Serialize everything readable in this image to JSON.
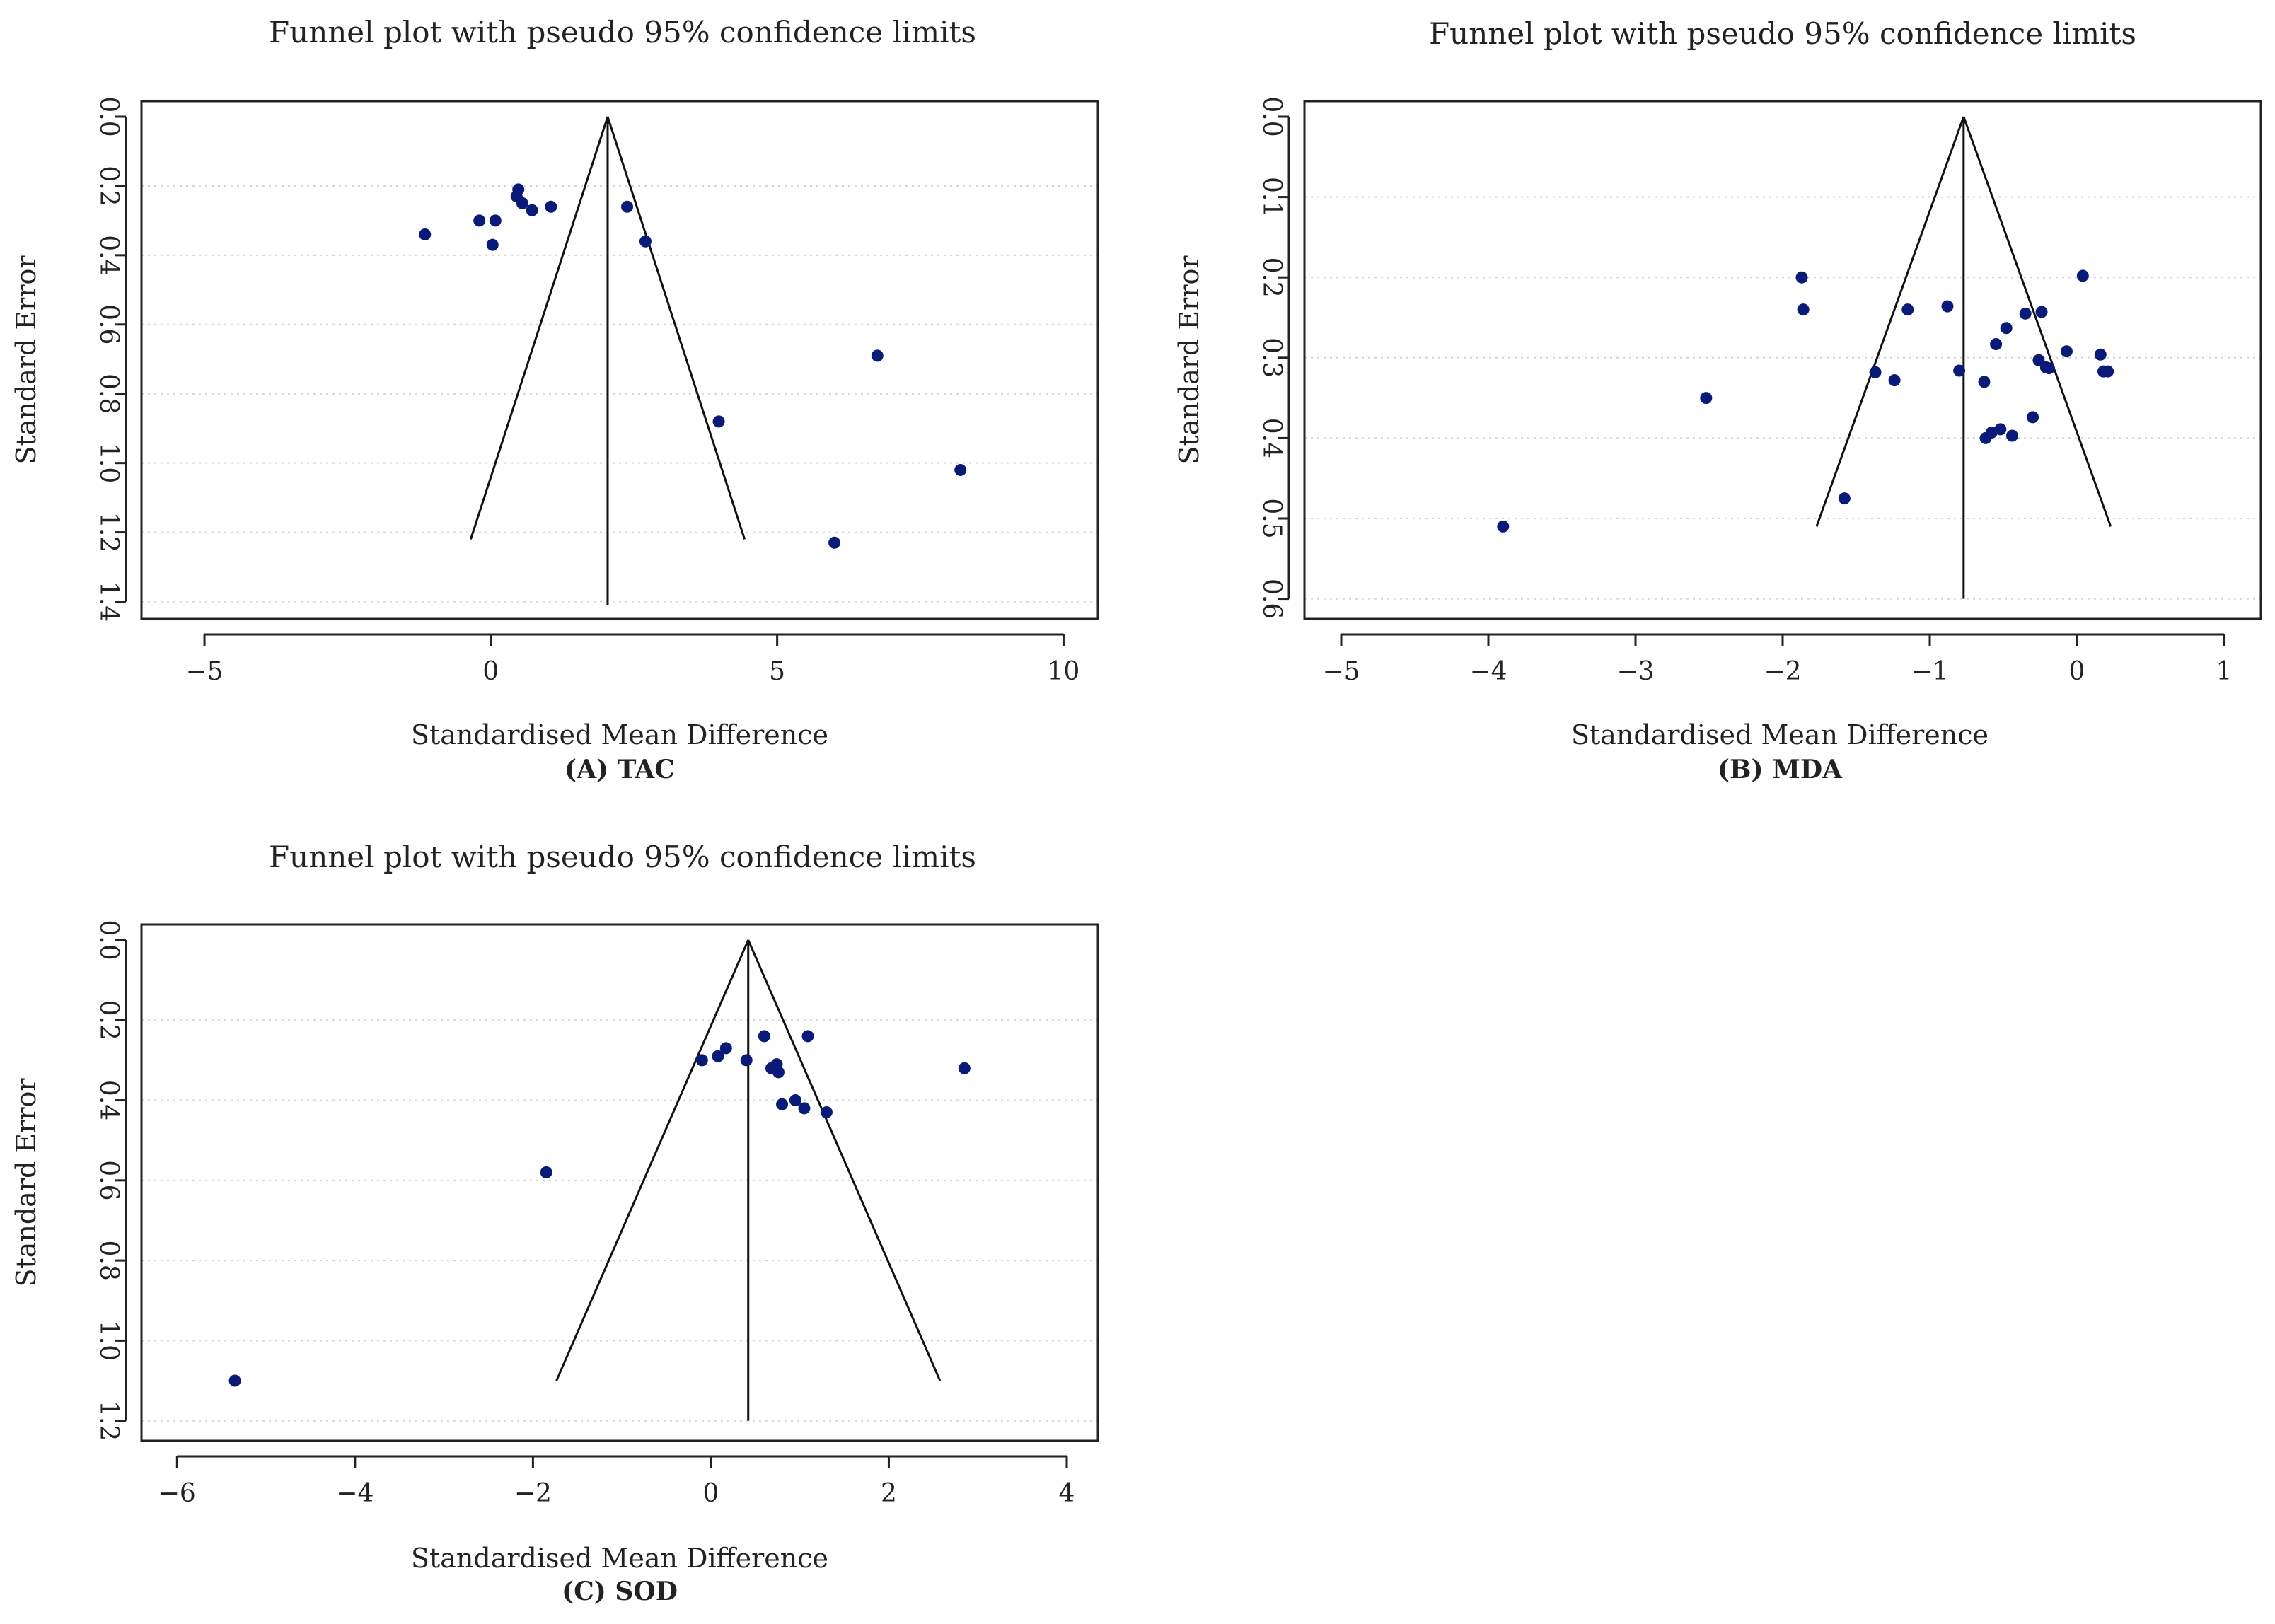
{
  "figure": {
    "panels": [
      "A",
      "B",
      "C"
    ]
  },
  "chart_data": [
    {
      "id": "A",
      "type": "scatter",
      "subtype": "funnel",
      "title": "Funnel plot with pseudo 95% confidence limits",
      "xlabel": "Standardised Mean Difference",
      "ylabel": "Standard Error",
      "caption": "(A) TAC",
      "xlim": [
        -6.1,
        10.6
      ],
      "ylim": [
        0,
        1.45
      ],
      "y_reversed": true,
      "xticks": [
        -5,
        0,
        5,
        10
      ],
      "xtick_labels": [
        "−5",
        "0",
        "5",
        "10"
      ],
      "yticks": [
        0,
        0.2,
        0.4,
        0.6,
        0.8,
        1.0,
        1.2,
        1.4
      ],
      "ytick_labels": [
        "0.0",
        "0.2",
        "0.4",
        "0.6",
        "0.8",
        "1.0",
        "1.2",
        "1.4"
      ],
      "grid": "horizontal-dotted",
      "funnel": {
        "center": 2.04,
        "se_max": 1.22,
        "vertical_line_to": 1.41
      },
      "points": [
        {
          "x": -1.15,
          "y": 0.34
        },
        {
          "x": -0.2,
          "y": 0.3
        },
        {
          "x": 0.08,
          "y": 0.3
        },
        {
          "x": 0.03,
          "y": 0.37
        },
        {
          "x": 0.48,
          "y": 0.21
        },
        {
          "x": 0.45,
          "y": 0.23
        },
        {
          "x": 0.55,
          "y": 0.25
        },
        {
          "x": 0.72,
          "y": 0.27
        },
        {
          "x": 1.05,
          "y": 0.26
        },
        {
          "x": 2.38,
          "y": 0.26
        },
        {
          "x": 2.7,
          "y": 0.36
        },
        {
          "x": 6.75,
          "y": 0.69
        },
        {
          "x": 3.98,
          "y": 0.88
        },
        {
          "x": 8.2,
          "y": 1.02
        },
        {
          "x": 6.0,
          "y": 1.23
        }
      ]
    },
    {
      "id": "B",
      "type": "scatter",
      "subtype": "funnel",
      "title": "Funnel plot with pseudo 95% confidence limits",
      "xlabel": "Standardised Mean Difference",
      "ylabel": "Standard Error",
      "caption": "(B) MDA",
      "xlim": [
        -5.25,
        1.25
      ],
      "ylim": [
        0,
        0.625
      ],
      "y_reversed": true,
      "xticks": [
        -5,
        -4,
        -3,
        -2,
        -1,
        0,
        1
      ],
      "xtick_labels": [
        "−5",
        "−4",
        "−3",
        "−2",
        "−1",
        "0",
        "1"
      ],
      "yticks": [
        0,
        0.1,
        0.2,
        0.3,
        0.4,
        0.5,
        0.6
      ],
      "ytick_labels": [
        "0.0",
        "0.1",
        "0.2",
        "0.3",
        "0.4",
        "0.5",
        "0.6"
      ],
      "grid": "horizontal-dotted",
      "funnel": {
        "center": -0.77,
        "se_max": 0.51,
        "vertical_line_to": 0.6
      },
      "points": [
        {
          "x": -3.9,
          "y": 0.51
        },
        {
          "x": -2.52,
          "y": 0.35
        },
        {
          "x": -1.87,
          "y": 0.2
        },
        {
          "x": -1.86,
          "y": 0.24
        },
        {
          "x": -1.58,
          "y": 0.475
        },
        {
          "x": -1.37,
          "y": 0.318
        },
        {
          "x": -1.24,
          "y": 0.328
        },
        {
          "x": -1.15,
          "y": 0.24
        },
        {
          "x": -0.88,
          "y": 0.236
        },
        {
          "x": -0.8,
          "y": 0.316
        },
        {
          "x": -0.63,
          "y": 0.33
        },
        {
          "x": -0.62,
          "y": 0.4
        },
        {
          "x": -0.58,
          "y": 0.393
        },
        {
          "x": -0.55,
          "y": 0.283
        },
        {
          "x": -0.52,
          "y": 0.389
        },
        {
          "x": -0.48,
          "y": 0.263
        },
        {
          "x": -0.44,
          "y": 0.397
        },
        {
          "x": -0.35,
          "y": 0.245
        },
        {
          "x": -0.3,
          "y": 0.374
        },
        {
          "x": -0.26,
          "y": 0.303
        },
        {
          "x": -0.24,
          "y": 0.243
        },
        {
          "x": -0.21,
          "y": 0.312
        },
        {
          "x": -0.19,
          "y": 0.313
        },
        {
          "x": -0.07,
          "y": 0.292
        },
        {
          "x": 0.04,
          "y": 0.198
        },
        {
          "x": 0.16,
          "y": 0.296
        },
        {
          "x": 0.18,
          "y": 0.317
        },
        {
          "x": 0.21,
          "y": 0.317
        }
      ]
    },
    {
      "id": "C",
      "type": "scatter",
      "subtype": "funnel",
      "title": "Funnel plot with pseudo 95% confidence limits",
      "xlabel": "Standardised Mean Difference",
      "ylabel": "Standard Error",
      "caption": "(C) SOD",
      "xlim": [
        -6.4,
        4.35
      ],
      "ylim": [
        0,
        1.25
      ],
      "y_reversed": true,
      "xticks": [
        -6,
        -4,
        -2,
        0,
        2,
        4
      ],
      "xtick_labels": [
        "−6",
        "−4",
        "−2",
        "0",
        "2",
        "4"
      ],
      "yticks": [
        0,
        0.2,
        0.4,
        0.6,
        0.8,
        1.0,
        1.2
      ],
      "ytick_labels": [
        "0.0",
        "0.2",
        "0.4",
        "0.6",
        "0.8",
        "1.0",
        "1.2"
      ],
      "grid": "horizontal-dotted",
      "funnel": {
        "center": 0.42,
        "se_max": 1.1,
        "vertical_line_to": 1.2
      },
      "points": [
        {
          "x": -5.35,
          "y": 1.1
        },
        {
          "x": -1.85,
          "y": 0.58
        },
        {
          "x": -0.1,
          "y": 0.3
        },
        {
          "x": 0.08,
          "y": 0.29
        },
        {
          "x": 0.17,
          "y": 0.27
        },
        {
          "x": 0.4,
          "y": 0.3
        },
        {
          "x": 0.6,
          "y": 0.24
        },
        {
          "x": 0.68,
          "y": 0.32
        },
        {
          "x": 0.74,
          "y": 0.31
        },
        {
          "x": 0.76,
          "y": 0.33
        },
        {
          "x": 0.8,
          "y": 0.41
        },
        {
          "x": 0.95,
          "y": 0.4
        },
        {
          "x": 1.05,
          "y": 0.42
        },
        {
          "x": 1.09,
          "y": 0.24
        },
        {
          "x": 1.3,
          "y": 0.43
        },
        {
          "x": 2.85,
          "y": 0.32
        }
      ]
    }
  ]
}
